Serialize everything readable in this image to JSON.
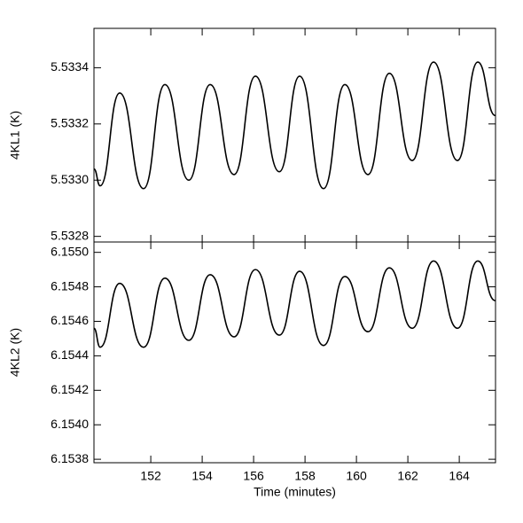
{
  "chart_data": [
    {
      "type": "line",
      "ylabel": "4KL1 (K)",
      "x": [
        149.79,
        150.03,
        150.79,
        151.72,
        152.55,
        153.48,
        154.31,
        155.24,
        156.07,
        157.0,
        157.79,
        158.72,
        159.55,
        160.45,
        161.28,
        162.17,
        163.0,
        163.93,
        164.72,
        165.4
      ],
      "series": [
        {
          "color": "#000000",
          "values": [
            5.53304,
            5.53298,
            5.53331,
            5.53297,
            5.53334,
            5.533,
            5.53334,
            5.53302,
            5.53337,
            5.53303,
            5.53337,
            5.53297,
            5.53334,
            5.53302,
            5.53338,
            5.53307,
            5.53342,
            5.53307,
            5.53342,
            5.53323
          ]
        }
      ],
      "xlim": [
        149.79,
        165.41
      ],
      "xticks": [
        152,
        154,
        156,
        158,
        160,
        162,
        164
      ],
      "ylim": [
        5.53278,
        5.53354
      ],
      "yticks": [
        5.5328,
        {
          "value": 5.533,
          "label": "5.5330"
        },
        5.5332,
        5.5334
      ]
    },
    {
      "type": "line",
      "ylabel": "4KL2 (K)",
      "xlabel": "Time (minutes)",
      "x": [
        149.79,
        150.03,
        150.79,
        151.72,
        152.55,
        153.48,
        154.31,
        155.24,
        156.07,
        157.0,
        157.79,
        158.72,
        159.55,
        160.45,
        161.28,
        162.17,
        163.0,
        163.93,
        164.72,
        165.4
      ],
      "series": [
        {
          "color": "#000000",
          "values": [
            6.15456,
            6.15445,
            6.15482,
            6.15445,
            6.15485,
            6.15449,
            6.15487,
            6.15451,
            6.1549,
            6.15452,
            6.15489,
            6.15446,
            6.15486,
            6.15454,
            6.15491,
            6.15456,
            6.15495,
            6.15456,
            6.15495,
            6.15472
          ]
        }
      ],
      "xlim": [
        149.79,
        165.41
      ],
      "xticks": [
        152,
        154,
        156,
        158,
        160,
        162,
        164
      ],
      "ylim": [
        6.15378,
        6.15506
      ],
      "yticks": [
        6.1538,
        {
          "value": 6.154,
          "label": "6.1540"
        },
        6.1542,
        6.1544,
        6.1546,
        6.1548,
        {
          "value": 6.155,
          "label": "6.1550"
        }
      ]
    }
  ]
}
